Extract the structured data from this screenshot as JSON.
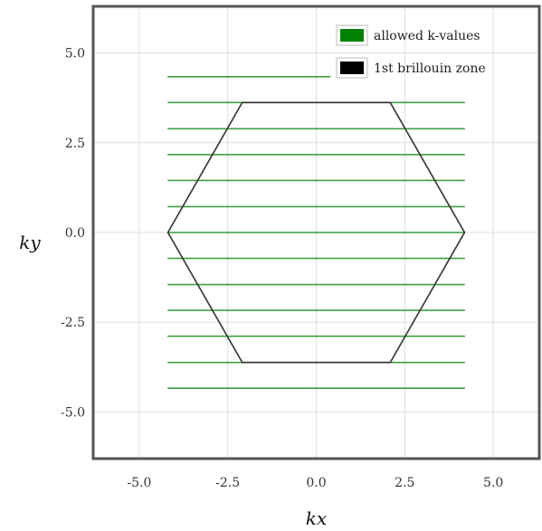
{
  "chart_data": {
    "type": "line",
    "title": "",
    "xlabel": "kx",
    "ylabel": "ky",
    "xlim": [
      -6.3,
      6.3
    ],
    "ylim": [
      -6.3,
      6.3
    ],
    "xticks": [
      -5.0,
      -2.5,
      0.0,
      2.5,
      5.0
    ],
    "yticks": [
      -5.0,
      -2.5,
      0.0,
      2.5,
      5.0
    ],
    "tick_labels": [
      "-5.0",
      "-2.5",
      "0.0",
      "2.5",
      "5.0"
    ],
    "grid": true,
    "legend_position": "top-right",
    "series": [
      {
        "name": "allowed k-values",
        "color": "#008000",
        "kind": "horizontal-lines",
        "lines": [
          {
            "y": 4.34,
            "x": [
              -4.2,
              0.4
            ]
          },
          {
            "y": 3.62,
            "x": [
              -4.2,
              4.2
            ]
          },
          {
            "y": 2.89,
            "x": [
              -4.2,
              4.2
            ]
          },
          {
            "y": 2.17,
            "x": [
              -4.2,
              4.2
            ]
          },
          {
            "y": 1.45,
            "x": [
              -4.2,
              4.2
            ]
          },
          {
            "y": 0.72,
            "x": [
              -4.2,
              4.2
            ]
          },
          {
            "y": 0.0,
            "x": [
              -4.2,
              4.2
            ]
          },
          {
            "y": -0.72,
            "x": [
              -4.2,
              4.2
            ]
          },
          {
            "y": -1.45,
            "x": [
              -4.2,
              4.2
            ]
          },
          {
            "y": -2.17,
            "x": [
              -4.2,
              4.2
            ]
          },
          {
            "y": -2.89,
            "x": [
              -4.2,
              4.2
            ]
          },
          {
            "y": -3.62,
            "x": [
              -4.2,
              4.2
            ]
          },
          {
            "y": -4.34,
            "x": [
              -4.2,
              4.2
            ]
          }
        ]
      },
      {
        "name": "1st brillouin zone",
        "color": "#000000",
        "kind": "polygon",
        "points": [
          [
            -4.19,
            0.0
          ],
          [
            -2.09,
            3.62
          ],
          [
            2.09,
            3.62
          ],
          [
            4.19,
            0.0
          ],
          [
            2.09,
            -3.62
          ],
          [
            -2.09,
            -3.62
          ]
        ]
      }
    ]
  }
}
